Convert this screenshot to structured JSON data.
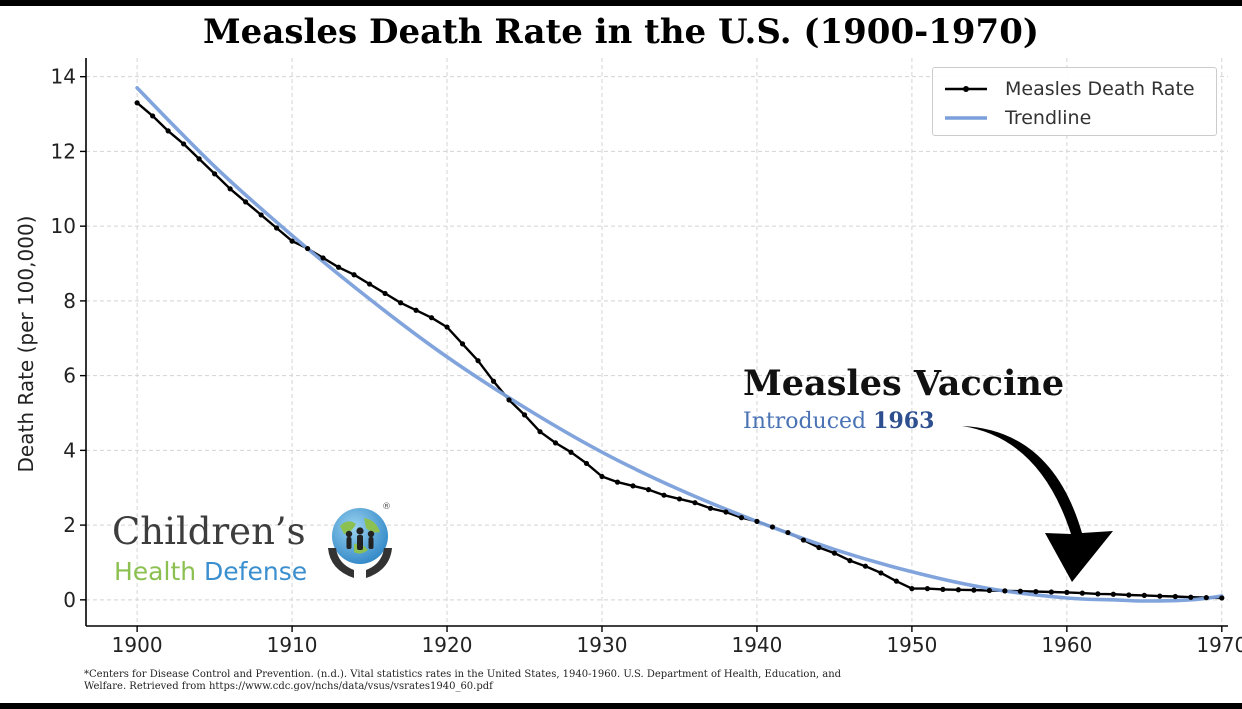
{
  "chart_data": {
    "type": "line",
    "title": "Measles Death Rate in the U.S. (1900-1970)",
    "xlabel": "",
    "ylabel": "Death Rate (per 100,000)",
    "xlim": [
      1896.7,
      1970.4
    ],
    "ylim": [
      -0.7,
      14.5
    ],
    "xticks": [
      1900,
      1910,
      1920,
      1930,
      1940,
      1950,
      1960,
      1970
    ],
    "yticks": [
      0,
      2,
      4,
      6,
      8,
      10,
      12,
      14
    ],
    "grid": true,
    "legend_position": "top-right",
    "series": [
      {
        "name": "Measles Death Rate",
        "color": "#000000",
        "marker": "dot",
        "x": [
          1900,
          1901,
          1902,
          1903,
          1904,
          1905,
          1906,
          1907,
          1908,
          1909,
          1910,
          1911,
          1912,
          1913,
          1914,
          1915,
          1916,
          1917,
          1918,
          1919,
          1920,
          1921,
          1922,
          1923,
          1924,
          1925,
          1926,
          1927,
          1928,
          1929,
          1930,
          1931,
          1932,
          1933,
          1934,
          1935,
          1936,
          1937,
          1938,
          1939,
          1940,
          1941,
          1942,
          1943,
          1944,
          1945,
          1946,
          1947,
          1948,
          1949,
          1950,
          1951,
          1952,
          1953,
          1954,
          1955,
          1956,
          1957,
          1958,
          1959,
          1960,
          1961,
          1962,
          1963,
          1964,
          1965,
          1966,
          1967,
          1968,
          1969,
          1970
        ],
        "values": [
          13.3,
          12.95,
          12.55,
          12.2,
          11.8,
          11.4,
          11.0,
          10.65,
          10.3,
          9.95,
          9.6,
          9.4,
          9.15,
          8.9,
          8.7,
          8.45,
          8.2,
          7.95,
          7.75,
          7.55,
          7.3,
          6.85,
          6.4,
          5.85,
          5.35,
          4.95,
          4.5,
          4.2,
          3.95,
          3.65,
          3.3,
          3.15,
          3.05,
          2.95,
          2.8,
          2.7,
          2.6,
          2.45,
          2.35,
          2.2,
          2.1,
          1.95,
          1.8,
          1.6,
          1.4,
          1.25,
          1.05,
          0.9,
          0.72,
          0.5,
          0.3,
          0.3,
          0.28,
          0.27,
          0.26,
          0.25,
          0.24,
          0.23,
          0.22,
          0.21,
          0.2,
          0.18,
          0.16,
          0.15,
          0.13,
          0.12,
          0.1,
          0.09,
          0.07,
          0.06,
          0.05
        ]
      },
      {
        "name": "Trendline",
        "color": "#7a9fda",
        "marker": "none",
        "curve": "smooth",
        "x": [
          1900,
          1905,
          1910,
          1915,
          1920,
          1925,
          1930,
          1935,
          1940,
          1945,
          1950,
          1955,
          1960,
          1963,
          1965,
          1968,
          1970
        ],
        "values": [
          13.7,
          11.6,
          9.75,
          8.05,
          6.5,
          5.15,
          3.95,
          2.95,
          2.1,
          1.35,
          0.75,
          0.3,
          0.05,
          0.0,
          -0.03,
          0.0,
          0.1
        ]
      }
    ],
    "annotation": {
      "title": "Measles Vaccine",
      "subtitle_prefix": "Introduced",
      "subtitle_year": "1963"
    }
  },
  "logo": {
    "line1": "Children’s",
    "line2_word1": "Health",
    "line2_word2": "Defense",
    "reg": "®"
  },
  "footnote": "*Centers for Disease Control and Prevention. (n.d.). Vital statistics rates in the United States, 1940-1960. U.S. Department of Health, Education, and Welfare. Retrieved from https://www.cdc.gov/nchs/data/vsus/vsrates1940_60.pdf"
}
